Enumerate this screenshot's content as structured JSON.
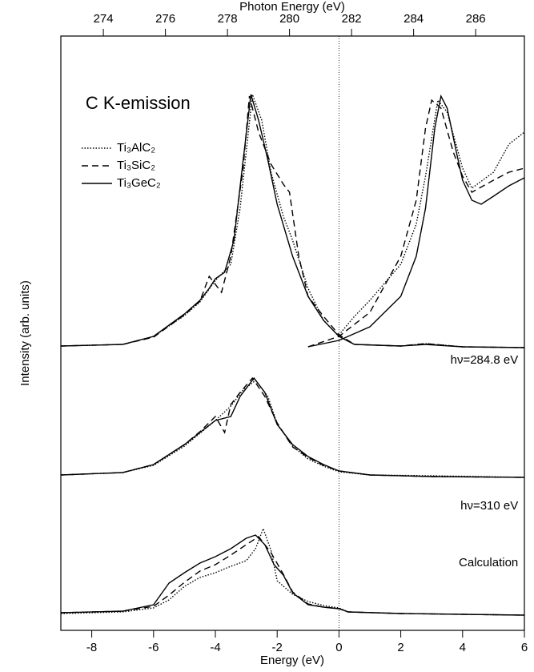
{
  "chart_data": {
    "type": "line",
    "xlabel": "Energy (eV)",
    "x2label": "Photon Energy (eV)",
    "ylabel": "Intensity (arb. units)",
    "xlim": [
      -9,
      6
    ],
    "xticks": [
      -8,
      -6,
      -4,
      -2,
      0,
      2,
      4,
      6
    ],
    "x2lim": [
      272.63,
      287.57
    ],
    "x2ticks": [
      274,
      276,
      278,
      280,
      282,
      284,
      286
    ],
    "ylim": [
      0,
      742
    ],
    "vline": 0,
    "annotations": [
      {
        "text": "C K-emission",
        "x": -8.2,
        "y": 657
      },
      {
        "text": "hν=284.8 eV",
        "x": 5.8,
        "y": 337
      },
      {
        "text": "hν=310 eV",
        "x": 5.8,
        "y": 155
      },
      {
        "text": "Calculation",
        "x": 5.8,
        "y": 84
      }
    ],
    "series": [
      {
        "name": "Ti₃AlC₂",
        "color": "#000000",
        "dash": "dotted",
        "x": [
          -9,
          -7,
          -6,
          -5,
          -4.5,
          -4,
          -3.5,
          -3.2,
          -2.8,
          -2.5,
          -2.2,
          -1.8,
          -1.5,
          -1,
          -0.5,
          0,
          0.5,
          2,
          2.8,
          4,
          6,
          null,
          -9,
          -7,
          -6,
          -5,
          -4.5,
          -4,
          -3.5,
          -3.1,
          -2.7,
          -2.3,
          -2,
          -1.5,
          -1,
          -0.5,
          0,
          1,
          3,
          6,
          null,
          -9,
          -7,
          -6,
          -5.5,
          -5,
          -4.5,
          -4,
          -3.5,
          -3,
          -2.7,
          -2.45,
          -2.2,
          -2,
          -1.5,
          -1,
          -0.5,
          0,
          0.3,
          2,
          6,
          null,
          0,
          0.5,
          1,
          2,
          2.5,
          2.8,
          3.2,
          3.5,
          4,
          4.3,
          5,
          5.5,
          6
        ],
        "values": [
          355,
          357,
          367,
          393,
          410,
          437,
          457,
          527,
          669,
          637,
          572,
          517,
          487,
          427,
          387,
          367,
          357,
          355,
          358,
          354,
          353,
          null,
          194,
          197,
          206,
          230,
          246,
          262,
          280,
          300,
          312,
          292,
          258,
          230,
          214,
          205,
          198,
          194,
          193,
          191,
          null,
          21,
          23,
          28,
          38,
          55,
          66,
          72,
          80,
          87,
          102,
          127,
          100,
          62,
          45,
          36,
          31,
          28,
          23,
          21,
          19,
          null,
          369,
          392,
          412,
          457,
          507,
          567,
          662,
          647,
          577,
          552,
          572,
          607,
          622
        ]
      },
      {
        "name": "Ti₃SiC₂",
        "color": "#000000",
        "dash": "dashed",
        "x": [
          -9,
          -7,
          -6,
          -5,
          -4.5,
          -4.2,
          -3.8,
          -3.5,
          -3.1,
          -2.9,
          -2.6,
          -2.2,
          -1.8,
          -1.6,
          -1.3,
          -1,
          -0.5,
          0,
          0.5,
          2,
          2.8,
          4,
          6,
          null,
          -9,
          -7,
          -6,
          -5,
          -4.5,
          -4,
          -3.7,
          -3.5,
          -3.2,
          -2.8,
          -2.4,
          -2,
          -1.5,
          -1,
          -0.5,
          0,
          1,
          3,
          6,
          null,
          -9,
          -7,
          -6,
          -5.5,
          -5,
          -4.5,
          -4,
          -3.5,
          -3,
          -2.6,
          -2.2,
          -1.8,
          -1.5,
          -1,
          -0.5,
          0,
          0.3,
          2,
          6,
          null,
          -1,
          0,
          1,
          2,
          2.5,
          2.8,
          3,
          3.3,
          3.7,
          4,
          4.3,
          5,
          5.5,
          6
        ],
        "values": [
          355,
          357,
          366,
          394,
          411,
          442,
          422,
          467,
          577,
          667,
          622,
          582,
          557,
          547,
          467,
          417,
          392,
          369,
          357,
          355,
          358,
          354,
          353,
          null,
          194,
          197,
          207,
          232,
          248,
          267,
          247,
          282,
          297,
          315,
          292,
          259,
          229,
          216,
          206,
          199,
          194,
          192,
          191,
          null,
          22,
          24,
          30,
          44,
          60,
          74,
          82,
          94,
          107,
          117,
          97,
          70,
          48,
          33,
          29,
          27,
          23,
          21,
          19,
          null,
          354,
          367,
          397,
          467,
          537,
          627,
          662,
          652,
          597,
          567,
          547,
          562,
          572,
          577
        ]
      },
      {
        "name": "Ti₃GeC₂",
        "color": "#000000",
        "dash": "solid",
        "x": [
          -9,
          -7,
          -6,
          -5,
          -4.5,
          -4.2,
          -4,
          -3.7,
          -3.4,
          -3.1,
          -2.85,
          -2.6,
          -2.3,
          -2,
          -1.5,
          -1,
          -0.5,
          0,
          0.5,
          2,
          2.8,
          4,
          6,
          null,
          -9,
          -7,
          -6,
          -5,
          -4.5,
          -4,
          -3.5,
          -3.2,
          -2.75,
          -2.4,
          -2,
          -1.5,
          -1,
          -0.5,
          0,
          1,
          3,
          6,
          null,
          -9,
          -7,
          -6,
          -5.5,
          -5,
          -4.5,
          -4,
          -3.5,
          -3,
          -2.7,
          -2.4,
          -2.1,
          -1.8,
          -1.5,
          -1,
          -0.5,
          0,
          0.3,
          2,
          6,
          null,
          -1,
          0,
          1,
          2,
          2.5,
          2.8,
          3.1,
          3.3,
          3.5,
          3.8,
          4,
          4.3,
          4.6,
          5,
          5.5,
          6
        ],
        "values": [
          355,
          357,
          367,
          395,
          412,
          427,
          439,
          447,
          487,
          587,
          669,
          637,
          587,
          532,
          467,
          417,
          387,
          367,
          357,
          355,
          357,
          354,
          353,
          null,
          194,
          197,
          207,
          232,
          247,
          262,
          267,
          292,
          315,
          297,
          257,
          232,
          217,
          207,
          199,
          194,
          192,
          191,
          null,
          22,
          24,
          32,
          59,
          72,
          84,
          92,
          102,
          115,
          119,
          107,
          82,
          69,
          47,
          32,
          29,
          27,
          23,
          21,
          19,
          null,
          354,
          362,
          379,
          417,
          467,
          527,
          627,
          667,
          652,
          597,
          562,
          537,
          532,
          542,
          555,
          565
        ]
      }
    ]
  }
}
